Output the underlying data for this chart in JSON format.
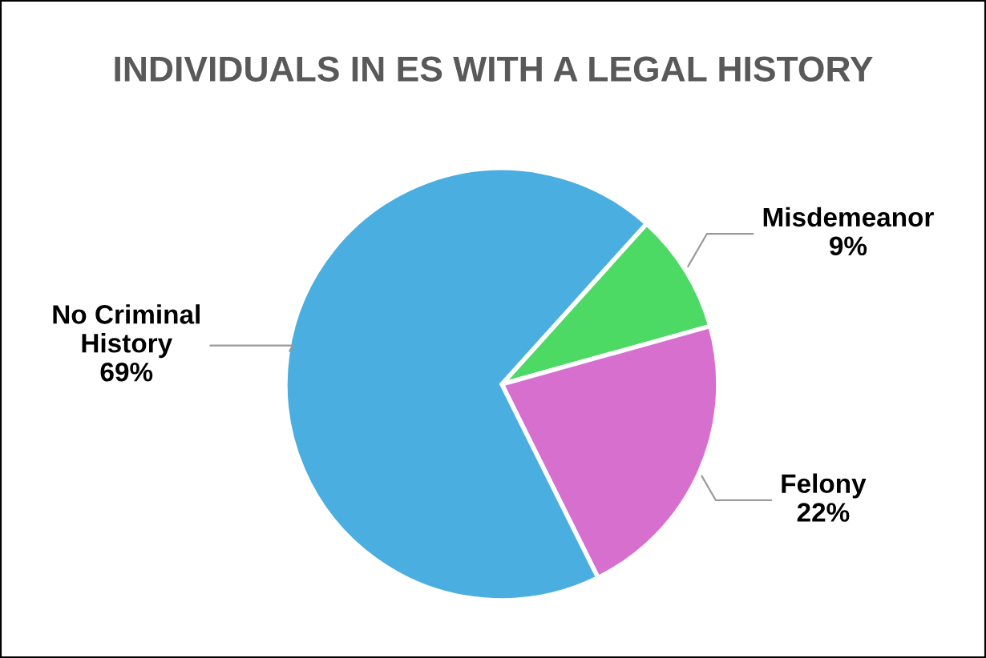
{
  "chart_data": {
    "type": "pie",
    "title": "INDIVIDUALS IN ES WITH A LEGAL HISTORY",
    "categories": [
      "Misdemeanor",
      "Felony",
      "No Criminal\nHistory"
    ],
    "values": [
      9,
      22,
      69
    ],
    "colors": [
      "#4cd964",
      "#d76fcf",
      "#4aaee0"
    ],
    "value_labels": [
      "9%",
      "22%",
      "69%"
    ],
    "legend": false
  }
}
